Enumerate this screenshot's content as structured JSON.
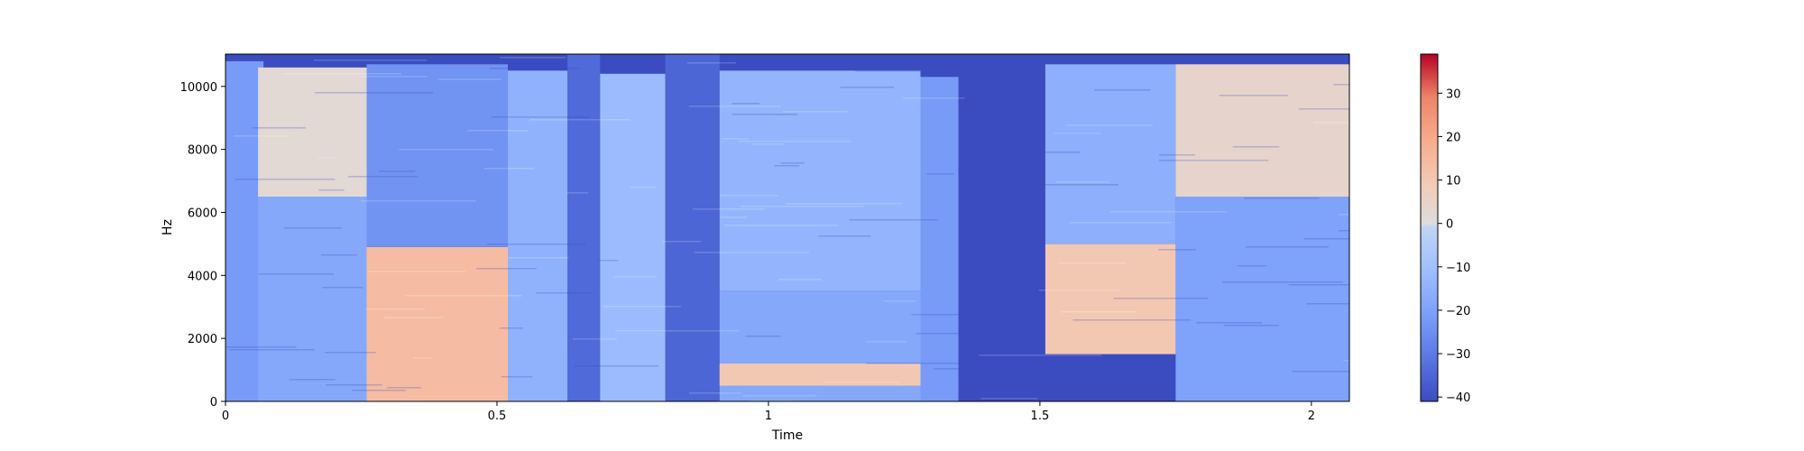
{
  "chart_data": {
    "type": "heatmap",
    "title": "",
    "xlabel": "Time",
    "ylabel": "Hz",
    "xlim": [
      0,
      2.07
    ],
    "ylim": [
      0,
      11025
    ],
    "xticks": [
      {
        "value": 0,
        "label": "0"
      },
      {
        "value": 0.5,
        "label": "0.5"
      },
      {
        "value": 1,
        "label": "1"
      },
      {
        "value": 1.5,
        "label": "1.5"
      },
      {
        "value": 2,
        "label": "2"
      }
    ],
    "yticks": [
      {
        "value": 0,
        "label": "0"
      },
      {
        "value": 2000,
        "label": "2000"
      },
      {
        "value": 4000,
        "label": "4000"
      },
      {
        "value": 6000,
        "label": "6000"
      },
      {
        "value": 8000,
        "label": "8000"
      },
      {
        "value": 10000,
        "label": "10000"
      }
    ],
    "colorbar": {
      "colormap": "coolwarm",
      "range": [
        -41,
        39
      ],
      "ticks": [
        {
          "value": -40,
          "label": "−40"
        },
        {
          "value": -30,
          "label": "−30"
        },
        {
          "value": -20,
          "label": "−20"
        },
        {
          "value": -10,
          "label": "−10"
        },
        {
          "value": 0,
          "label": "0"
        },
        {
          "value": 10,
          "label": "10"
        },
        {
          "value": 20,
          "label": "20"
        },
        {
          "value": 30,
          "label": "30"
        }
      ]
    },
    "regions": [
      {
        "t0": 0.0,
        "t1": 0.07,
        "f0": 0,
        "f1": 10800,
        "db": -22
      },
      {
        "t0": 0.06,
        "t1": 0.26,
        "f0": 6500,
        "f1": 10600,
        "db": 2
      },
      {
        "t0": 0.06,
        "t1": 0.26,
        "f0": 0,
        "f1": 6500,
        "db": -18
      },
      {
        "t0": 0.26,
        "t1": 0.52,
        "f0": 0,
        "f1": 4900,
        "db": 14
      },
      {
        "t0": 0.26,
        "t1": 0.52,
        "f0": 4900,
        "f1": 10700,
        "db": -24
      },
      {
        "t0": 0.52,
        "t1": 0.63,
        "f0": 0,
        "f1": 10500,
        "db": -15
      },
      {
        "t0": 0.63,
        "t1": 0.69,
        "f0": 0,
        "f1": 11025,
        "db": -34
      },
      {
        "t0": 0.69,
        "t1": 0.81,
        "f0": 0,
        "f1": 10400,
        "db": -12
      },
      {
        "t0": 0.81,
        "t1": 0.91,
        "f0": 0,
        "f1": 11025,
        "db": -35
      },
      {
        "t0": 0.91,
        "t1": 1.28,
        "f0": 3500,
        "f1": 10500,
        "db": -14
      },
      {
        "t0": 0.91,
        "t1": 1.28,
        "f0": 0,
        "f1": 3500,
        "db": -18
      },
      {
        "t0": 0.91,
        "t1": 1.28,
        "f0": 500,
        "f1": 1200,
        "db": 10
      },
      {
        "t0": 1.28,
        "t1": 1.35,
        "f0": 0,
        "f1": 10300,
        "db": -22
      },
      {
        "t0": 1.35,
        "t1": 1.51,
        "f0": 0,
        "f1": 11025,
        "db": -41
      },
      {
        "t0": 1.51,
        "t1": 1.75,
        "f0": 1500,
        "f1": 5000,
        "db": 10
      },
      {
        "t0": 1.51,
        "t1": 1.75,
        "f0": 5000,
        "f1": 10700,
        "db": -16
      },
      {
        "t0": 1.75,
        "t1": 2.07,
        "f0": 6500,
        "f1": 10700,
        "db": 4
      },
      {
        "t0": 1.75,
        "t1": 2.07,
        "f0": 0,
        "f1": 6500,
        "db": -20
      }
    ]
  }
}
